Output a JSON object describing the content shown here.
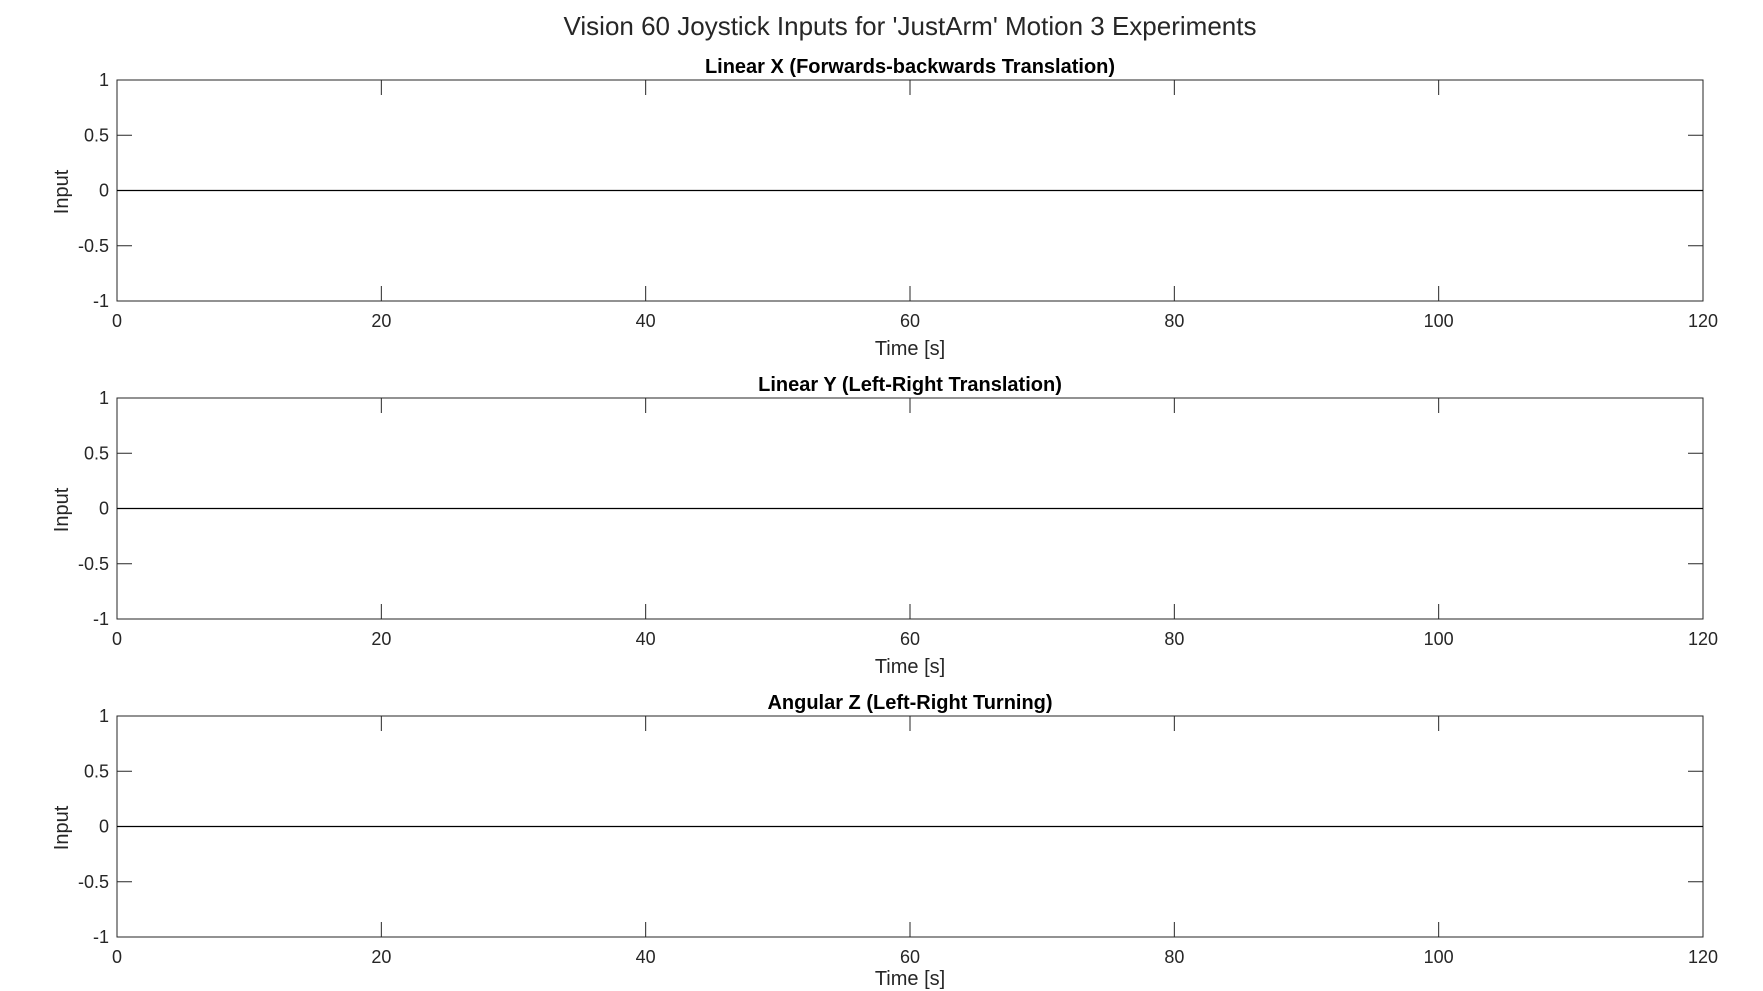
{
  "figure": {
    "title": "Vision 60 Joystick Inputs for 'JustArm' Motion 3 Experiments"
  },
  "chart_data": [
    {
      "type": "line",
      "title": "Linear X (Forwards-backwards Translation)",
      "xlabel": "Time [s]",
      "ylabel": "Input",
      "xlim": [
        0,
        120
      ],
      "ylim": [
        -1,
        1
      ],
      "xticks": [
        0,
        20,
        40,
        60,
        80,
        100,
        120
      ],
      "yticks": [
        -1,
        -0.5,
        0,
        0.5,
        1
      ],
      "xtick_labels": [
        "0",
        "20",
        "40",
        "60",
        "80",
        "100",
        "120"
      ],
      "ytick_labels": [
        "-1",
        "-0.5",
        "0",
        "0.5",
        "1"
      ],
      "grid": false,
      "series": [
        {
          "x": [
            0,
            120
          ],
          "y": [
            0,
            0
          ],
          "color": "#000000"
        }
      ]
    },
    {
      "type": "line",
      "title": "Linear Y (Left-Right Translation)",
      "xlabel": "Time [s]",
      "ylabel": "Input",
      "xlim": [
        0,
        120
      ],
      "ylim": [
        -1,
        1
      ],
      "xticks": [
        0,
        20,
        40,
        60,
        80,
        100,
        120
      ],
      "yticks": [
        -1,
        -0.5,
        0,
        0.5,
        1
      ],
      "xtick_labels": [
        "0",
        "20",
        "40",
        "60",
        "80",
        "100",
        "120"
      ],
      "ytick_labels": [
        "-1",
        "-0.5",
        "0",
        "0.5",
        "1"
      ],
      "grid": false,
      "series": [
        {
          "x": [
            0,
            120
          ],
          "y": [
            0,
            0
          ],
          "color": "#000000"
        }
      ]
    },
    {
      "type": "line",
      "title": "Angular Z (Left-Right Turning)",
      "xlabel": "Time [s]",
      "ylabel": "Input",
      "xlim": [
        0,
        120
      ],
      "ylim": [
        -1,
        1
      ],
      "xticks": [
        0,
        20,
        40,
        60,
        80,
        100,
        120
      ],
      "yticks": [
        -1,
        -0.5,
        0,
        0.5,
        1
      ],
      "xtick_labels": [
        "0",
        "20",
        "40",
        "60",
        "80",
        "100",
        "120"
      ],
      "ytick_labels": [
        "-1",
        "-0.5",
        "0",
        "0.5",
        "1"
      ],
      "grid": false,
      "series": [
        {
          "x": [
            0,
            120
          ],
          "y": [
            0,
            0
          ],
          "color": "#000000"
        }
      ]
    }
  ]
}
